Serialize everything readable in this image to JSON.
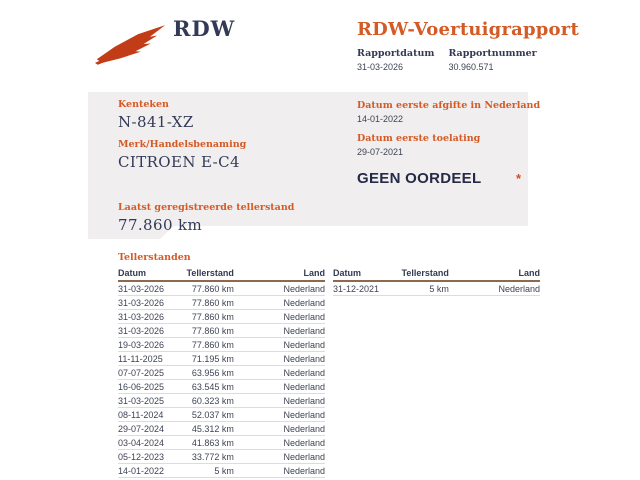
{
  "brand": {
    "logo_text": "RDW",
    "logo_color": "#c13c17",
    "navy": "#333a56",
    "orange": "#d45a26"
  },
  "header": {
    "title": "RDW-Voertuigrapport",
    "fields": [
      {
        "label": "Rapportdatum",
        "value": "31-03-2026"
      },
      {
        "label": "Rapportnummer",
        "value": "30.960.571"
      }
    ]
  },
  "summary_card": {
    "left_fields": [
      {
        "label": "Kenteken",
        "value": "N-841-XZ"
      },
      {
        "label": "Merk/Handelsbenaming",
        "value": "CITROEN E-C4"
      },
      {
        "label": "Laatst geregistreerde tellerstand",
        "value": "77.860 km"
      }
    ],
    "right_fields": [
      {
        "label": "Datum eerste afgifte in Nederland",
        "value": "14-01-2022"
      },
      {
        "label": "Datum eerste toelating",
        "value": "29-07-2021"
      }
    ],
    "verdict": "GEEN OORDEEL",
    "verdict_marker": "*"
  },
  "tellerstanden": {
    "title": "Tellerstanden",
    "columns": [
      "Datum",
      "Tellerstand",
      "Land"
    ],
    "left_rows": [
      [
        "31-03-2026",
        "77.860 km",
        "Nederland"
      ],
      [
        "31-03-2026",
        "77.860 km",
        "Nederland"
      ],
      [
        "31-03-2026",
        "77.860 km",
        "Nederland"
      ],
      [
        "31-03-2026",
        "77.860 km",
        "Nederland"
      ],
      [
        "19-03-2026",
        "77.860 km",
        "Nederland"
      ],
      [
        "11-11-2025",
        "71.195 km",
        "Nederland"
      ],
      [
        "07-07-2025",
        "63.956 km",
        "Nederland"
      ],
      [
        "16-06-2025",
        "63.545 km",
        "Nederland"
      ],
      [
        "31-03-2025",
        "60.323 km",
        "Nederland"
      ],
      [
        "08-11-2024",
        "52.037 km",
        "Nederland"
      ],
      [
        "29-07-2024",
        "45.312 km",
        "Nederland"
      ],
      [
        "03-04-2024",
        "41.863 km",
        "Nederland"
      ],
      [
        "05-12-2023",
        "33.772 km",
        "Nederland"
      ],
      [
        "14-01-2022",
        "5 km",
        "Nederland"
      ]
    ],
    "right_rows": [
      [
        "31-12-2021",
        "5 km",
        "Nederland"
      ]
    ]
  }
}
